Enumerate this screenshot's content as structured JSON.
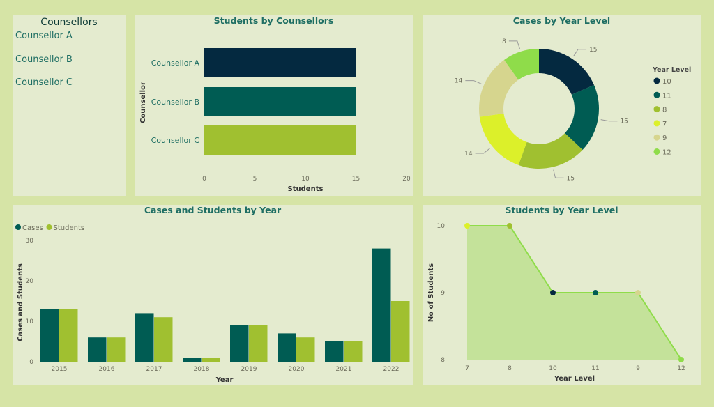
{
  "slicer": {
    "title": "Counsellors",
    "items": [
      "Counsellor A",
      "Counsellor B",
      "Counsellor C"
    ]
  },
  "colors": {
    "background": "#d6e4a6",
    "panel": "#e4ebcf",
    "title": "#1e6e63",
    "dark_navy": "#042940",
    "dark_teal": "#005c53",
    "olive_green": "#a0c030",
    "yellow": "#dcf02a",
    "tan": "#d6d58e",
    "light_green": "#8fdc4a"
  },
  "chart_data": [
    {
      "type": "bar",
      "orientation": "horizontal",
      "title": "Students by Counsellors",
      "categories": [
        "Counsellor A",
        "Counsellor B",
        "Counsellor C"
      ],
      "values": [
        15,
        15,
        15
      ],
      "colors": [
        "#042940",
        "#005c53",
        "#a0c030"
      ],
      "xlabel": "Students",
      "ylabel": "Counsellor",
      "xlim": [
        0,
        20
      ],
      "xticks": [
        "0",
        "5",
        "10",
        "15",
        "20"
      ]
    },
    {
      "type": "pie",
      "donut": true,
      "title": "Cases by Year Level",
      "legend_title": "Year Level",
      "legend_position": "right",
      "slices": [
        {
          "label": "10",
          "value": 15,
          "color": "#042940"
        },
        {
          "label": "11",
          "value": 15,
          "color": "#005c53"
        },
        {
          "label": "8",
          "value": 15,
          "color": "#a0c030"
        },
        {
          "label": "7",
          "value": 14,
          "color": "#dcf02a"
        },
        {
          "label": "9",
          "value": 14,
          "color": "#d6d58e"
        },
        {
          "label": "12",
          "value": 8,
          "color": "#8fdc4a"
        }
      ]
    },
    {
      "type": "bar",
      "title": "Cases and Students by Year",
      "xlabel": "Year",
      "ylabel": "Cases and Students",
      "ylim": [
        0,
        30
      ],
      "yticks": [
        "0",
        "10",
        "20",
        "30"
      ],
      "legend_position": "top-left",
      "categories": [
        "2015",
        "2016",
        "2017",
        "2018",
        "2019",
        "2020",
        "2021",
        "2022"
      ],
      "series": [
        {
          "name": "Cases",
          "color": "#005c53",
          "values": [
            13,
            6,
            12,
            1,
            9,
            7,
            5,
            28
          ]
        },
        {
          "name": "Students",
          "color": "#a0c030",
          "values": [
            13,
            6,
            11,
            1,
            9,
            6,
            5,
            15
          ]
        }
      ]
    },
    {
      "type": "area",
      "title": "Students by Year Level",
      "xlabel": "Year Level",
      "ylabel": "No of Students",
      "ylim": [
        8,
        10
      ],
      "yticks": [
        "8",
        "9",
        "10"
      ],
      "categories": [
        "7",
        "8",
        "10",
        "11",
        "9",
        "12"
      ],
      "values": [
        10,
        10,
        9,
        9,
        9,
        8
      ],
      "point_colors": [
        "#dcf02a",
        "#a0c030",
        "#042940",
        "#005c53",
        "#d6d58e",
        "#8fdc4a"
      ]
    }
  ]
}
